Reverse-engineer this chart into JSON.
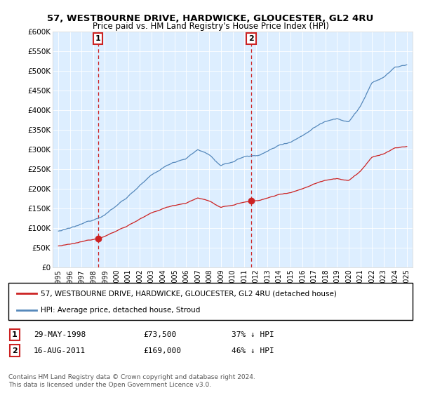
{
  "title1": "57, WESTBOURNE DRIVE, HARDWICKE, GLOUCESTER, GL2 4RU",
  "title2": "Price paid vs. HM Land Registry's House Price Index (HPI)",
  "legend_label1": "57, WESTBOURNE DRIVE, HARDWICKE, GLOUCESTER, GL2 4RU (detached house)",
  "legend_label2": "HPI: Average price, detached house, Stroud",
  "annotation1_date": "29-MAY-1998",
  "annotation1_price": "£73,500",
  "annotation1_hpi": "37% ↓ HPI",
  "annotation2_date": "16-AUG-2011",
  "annotation2_price": "£169,000",
  "annotation2_hpi": "46% ↓ HPI",
  "footnote": "Contains HM Land Registry data © Crown copyright and database right 2024.\nThis data is licensed under the Open Government Licence v3.0.",
  "hpi_color": "#5588bb",
  "price_color": "#cc2222",
  "marker1_x": 1998.4,
  "marker1_y": 73500,
  "marker2_x": 2011.6,
  "marker2_y": 169000,
  "ylim": [
    0,
    600000
  ],
  "xlim": [
    1994.5,
    2025.5
  ],
  "yticks": [
    0,
    50000,
    100000,
    150000,
    200000,
    250000,
    300000,
    350000,
    400000,
    450000,
    500000,
    550000,
    600000
  ],
  "ytick_labels": [
    "£0",
    "£50K",
    "£100K",
    "£150K",
    "£200K",
    "£250K",
    "£300K",
    "£350K",
    "£400K",
    "£450K",
    "£500K",
    "£550K",
    "£600K"
  ],
  "xticks": [
    1995,
    1996,
    1997,
    1998,
    1999,
    2000,
    2001,
    2002,
    2003,
    2004,
    2005,
    2006,
    2007,
    2008,
    2009,
    2010,
    2011,
    2012,
    2013,
    2014,
    2015,
    2016,
    2017,
    2018,
    2019,
    2020,
    2021,
    2022,
    2023,
    2024,
    2025
  ]
}
